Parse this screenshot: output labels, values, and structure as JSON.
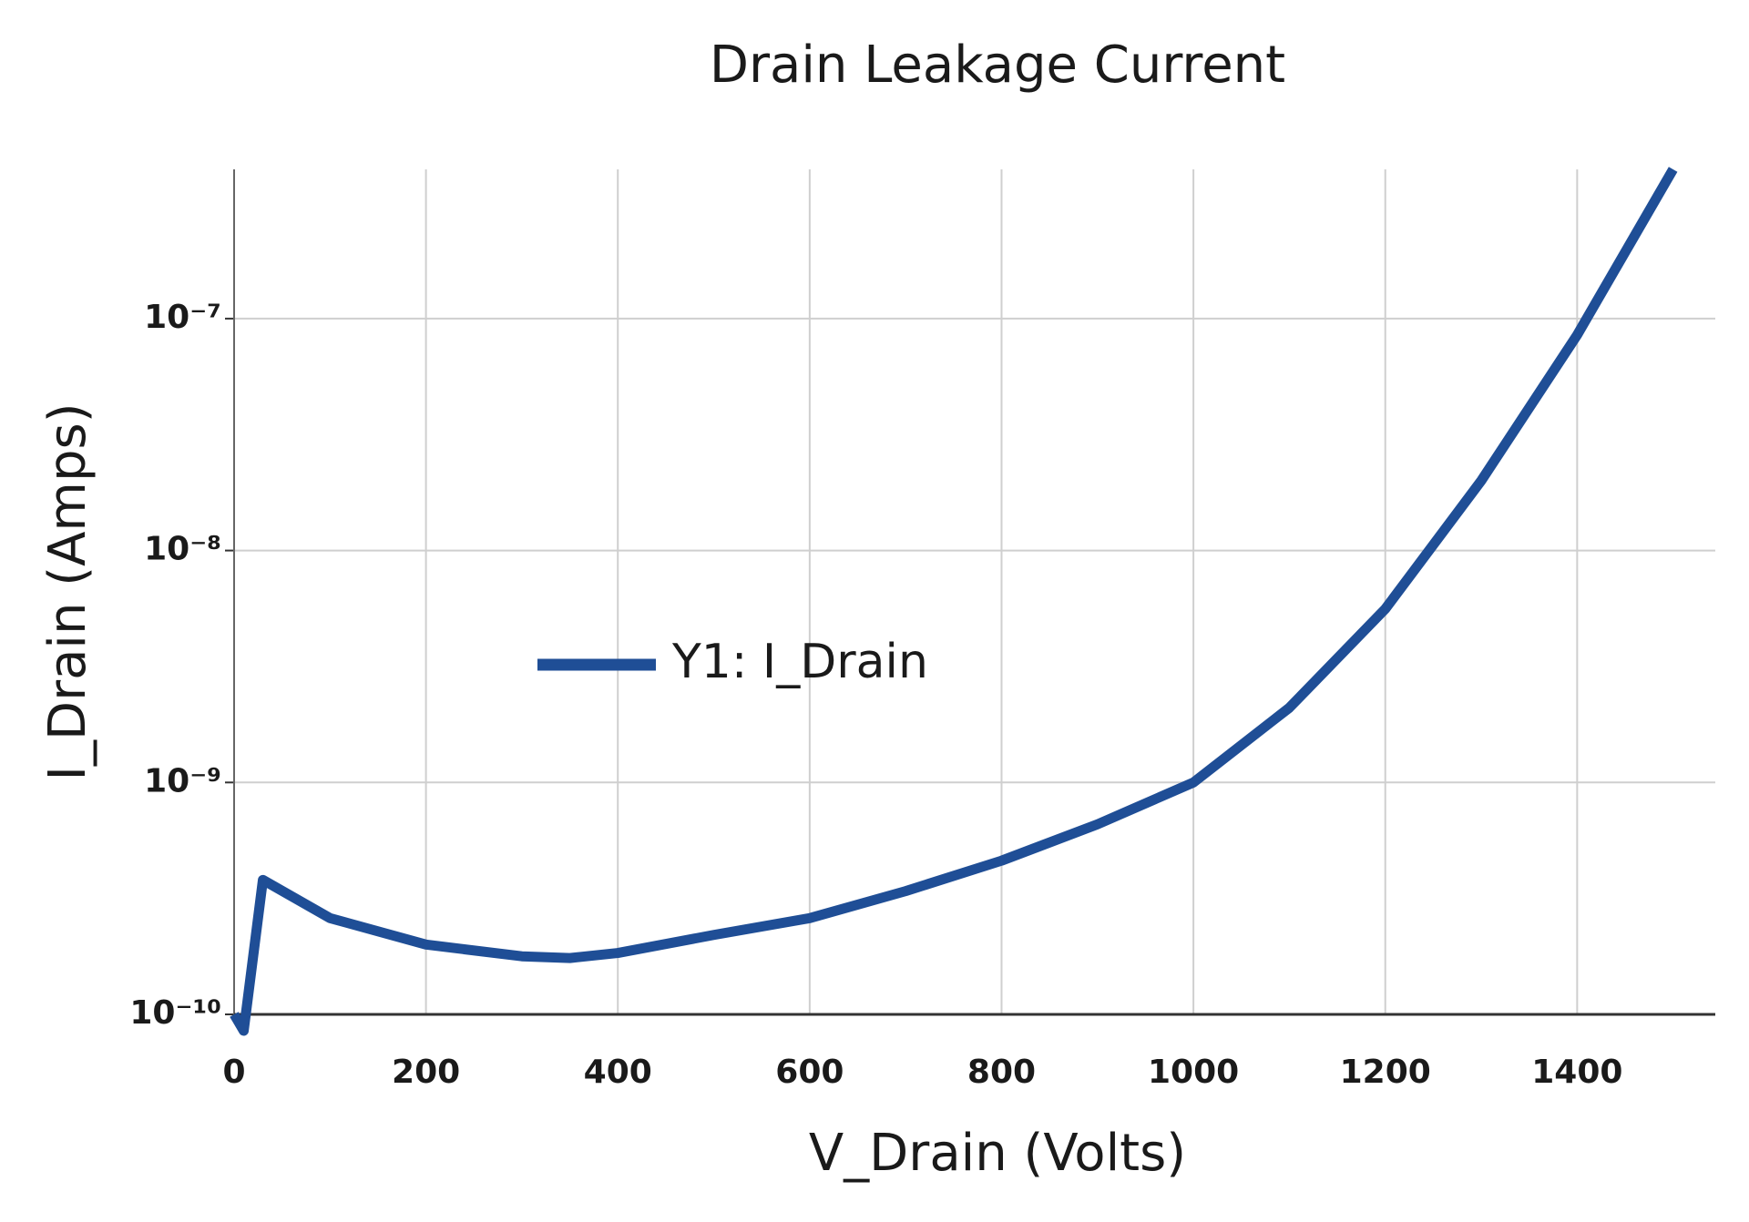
{
  "chart_data": {
    "type": "line",
    "title": "Drain Leakage Current",
    "x_label": "V_Drain (Volts)",
    "y_label": "I_Drain (Amps)",
    "x": [
      0,
      10,
      30,
      100,
      200,
      300,
      350,
      400,
      500,
      600,
      700,
      800,
      900,
      1000,
      1100,
      1200,
      1300,
      1400,
      1500
    ],
    "series": [
      {
        "name": "Y1: I_Drain",
        "color": "#1f4e96",
        "values": [
          1e-10,
          8.5e-11,
          3.8e-10,
          2.6e-10,
          2e-10,
          1.78e-10,
          1.75e-10,
          1.84e-10,
          2.2e-10,
          2.6e-10,
          3.4e-10,
          4.6e-10,
          6.6e-10,
          1e-09,
          2.1e-09,
          5.6e-09,
          2e-08,
          8.5e-08,
          4.4e-07
        ]
      }
    ],
    "xlim": [
      0,
      1544
    ],
    "xticks": [
      0,
      200,
      400,
      600,
      800,
      1000,
      1200,
      1400
    ],
    "ylim": [
      1e-10,
      4.4e-07
    ],
    "y_scale": "log",
    "yticks": [
      {
        "value": 1e-10,
        "label": "10⁻¹⁰"
      },
      {
        "value": 1e-09,
        "label": "10⁻⁹"
      },
      {
        "value": 1e-08,
        "label": "10⁻⁸"
      },
      {
        "value": 1e-07,
        "label": "10⁻⁷"
      }
    ],
    "grid": true,
    "legend": "center left"
  }
}
